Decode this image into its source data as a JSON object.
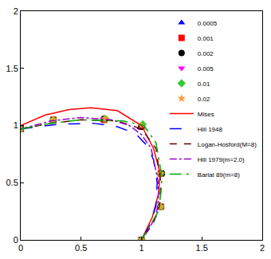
{
  "chart_data": {
    "type": "scatter",
    "xlim": [
      0,
      2
    ],
    "ylim": [
      0,
      2
    ],
    "xticks": [
      0,
      0.5,
      1,
      1.5,
      2
    ],
    "yticks": [
      0,
      0.5,
      1,
      1.5,
      2
    ],
    "grid": false,
    "legend": "top-right",
    "series": [
      {
        "name": "0.0005",
        "type": "scatter",
        "marker": "triangle-up",
        "color": "#0000ff",
        "x": [
          0,
          0.27,
          0.68,
          0.99,
          1.16,
          1.16,
          1.0
        ],
        "values": [
          0.97,
          1.05,
          1.05,
          0.98,
          0.58,
          0.29,
          0
        ]
      },
      {
        "name": "0.001",
        "type": "scatter",
        "marker": "square",
        "color": "#ff0000",
        "x": [
          0,
          0.27,
          0.69,
          1.0,
          1.16,
          1.16,
          1.0
        ],
        "values": [
          0.97,
          1.05,
          1.05,
          0.99,
          0.58,
          0.29,
          0
        ]
      },
      {
        "name": "0.002",
        "type": "scatter",
        "marker": "circle",
        "color": "#000000",
        "x": [
          0,
          0.27,
          0.69,
          1.0,
          1.17,
          1.16,
          1.0
        ],
        "values": [
          0.97,
          1.05,
          1.06,
          0.99,
          0.58,
          0.29,
          0
        ]
      },
      {
        "name": "0.005",
        "type": "scatter",
        "marker": "triangle-down",
        "color": "#ff00ff",
        "x": [
          0,
          0.27,
          0.69,
          1.0,
          1.16,
          1.16,
          1.0
        ],
        "values": [
          0.97,
          1.05,
          1.06,
          1.0,
          0.58,
          0.29,
          0
        ]
      },
      {
        "name": "0.01",
        "type": "scatter",
        "marker": "diamond",
        "color": "#33cc33",
        "x": [
          0,
          0.27,
          0.7,
          1.01,
          1.16,
          1.16,
          1.0
        ],
        "values": [
          0.97,
          1.05,
          1.06,
          1.01,
          0.58,
          0.29,
          0
        ]
      },
      {
        "name": "0.02",
        "type": "scatter",
        "marker": "star",
        "color": "#ff9933",
        "x": [
          0,
          0.27,
          0.7,
          1.0,
          1.16,
          1.16,
          1.0
        ],
        "values": [
          0.97,
          1.05,
          1.06,
          1.0,
          0.58,
          0.29,
          0
        ]
      },
      {
        "name": "Mises",
        "type": "line",
        "line_style": "solid",
        "color": "#ff0000",
        "x": [
          0,
          0.2,
          0.4,
          0.58,
          0.8,
          1.0,
          1.1,
          1.155,
          1.14,
          1.09,
          1.0
        ],
        "values": [
          1.0,
          1.09,
          1.14,
          1.155,
          1.13,
          1.0,
          0.8,
          0.58,
          0.4,
          0.2,
          0
        ]
      },
      {
        "name": "Hill 1948",
        "type": "line",
        "line_style": "longdash",
        "color": "#0000ff",
        "x": [
          0,
          0.3,
          0.6,
          0.8,
          0.95,
          1.05,
          1.1,
          1.13,
          1.12,
          1.08,
          1.0
        ],
        "values": [
          0.97,
          1.01,
          1.02,
          0.99,
          0.93,
          0.82,
          0.7,
          0.5,
          0.3,
          0.15,
          0
        ]
      },
      {
        "name": "Logan-Hosford(M=8)",
        "type": "line",
        "line_style": "dash",
        "color": "#660000",
        "x": [
          0,
          0.25,
          0.5,
          0.8,
          1.0,
          1.12,
          1.16,
          1.15,
          1.1,
          1.0
        ],
        "values": [
          0.97,
          1.02,
          1.05,
          1.04,
          0.97,
          0.8,
          0.5,
          0.3,
          0.15,
          0
        ]
      },
      {
        "name": "Hill 1979(m=2.0)",
        "type": "line",
        "line_style": "dashdot",
        "color": "#9900cc",
        "x": [
          0,
          0.25,
          0.5,
          0.75,
          0.9,
          1.0,
          1.08,
          1.14,
          1.14,
          1.12,
          1.0
        ],
        "values": [
          0.97,
          1.04,
          1.07,
          1.05,
          1.0,
          0.92,
          0.8,
          0.5,
          0.35,
          0.2,
          0
        ]
      },
      {
        "name": "Barlat 89(m=8)",
        "type": "line",
        "line_style": "longdashdot",
        "color": "#00aa00",
        "x": [
          0,
          0.25,
          0.5,
          0.85,
          1.02,
          1.12,
          1.17,
          1.16,
          1.14,
          1.0
        ],
        "values": [
          0.97,
          1.02,
          1.05,
          1.04,
          1.0,
          0.85,
          0.55,
          0.4,
          0.25,
          0
        ]
      }
    ]
  }
}
